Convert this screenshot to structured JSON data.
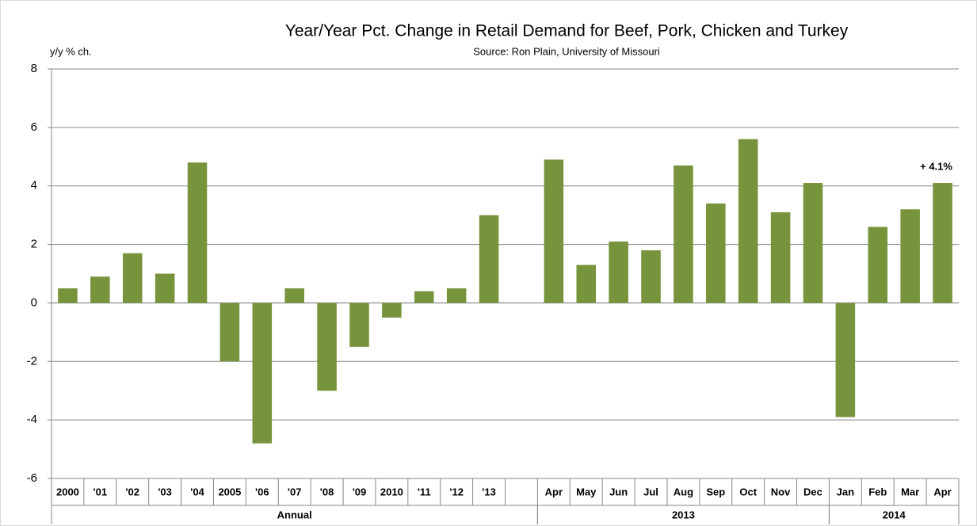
{
  "chart_data": {
    "type": "bar",
    "title": "Year/Year Pct. Change in Retail Demand for Beef, Pork, Chicken and Turkey",
    "subtitle": "Source: Ron Plain, University of Missouri",
    "y_axis_label": "y/y % ch.",
    "categories": [
      "2000",
      "'01",
      "'02",
      "'03",
      "'04",
      "2005",
      "'06",
      "'07",
      "'08",
      "'09",
      "2010",
      "'11",
      "'12",
      "'13",
      null,
      "Apr",
      "May",
      "Jun",
      "Jul",
      "Aug",
      "Sep",
      "Oct",
      "Nov",
      "Dec",
      "Jan",
      "Feb",
      "Mar",
      "Apr"
    ],
    "values": [
      0.5,
      0.9,
      1.7,
      1.0,
      4.8,
      -2.0,
      -4.8,
      0.5,
      -3.0,
      -1.5,
      -0.5,
      0.4,
      0.5,
      3.0,
      null,
      4.9,
      1.3,
      2.1,
      1.8,
      4.7,
      3.4,
      5.6,
      3.1,
      4.1,
      -3.9,
      2.6,
      3.2,
      4.1
    ],
    "groups": [
      {
        "name": "Annual",
        "count": 15
      },
      {
        "name": "2013",
        "count": 9
      },
      {
        "name": "2014",
        "count": 4
      }
    ],
    "annotation": "+ 4.1%",
    "color": "#77933c",
    "ylim": [
      -6,
      8
    ],
    "yticks": [
      -6,
      -4,
      -2,
      0,
      2,
      4,
      6,
      8
    ],
    "grid": true
  }
}
